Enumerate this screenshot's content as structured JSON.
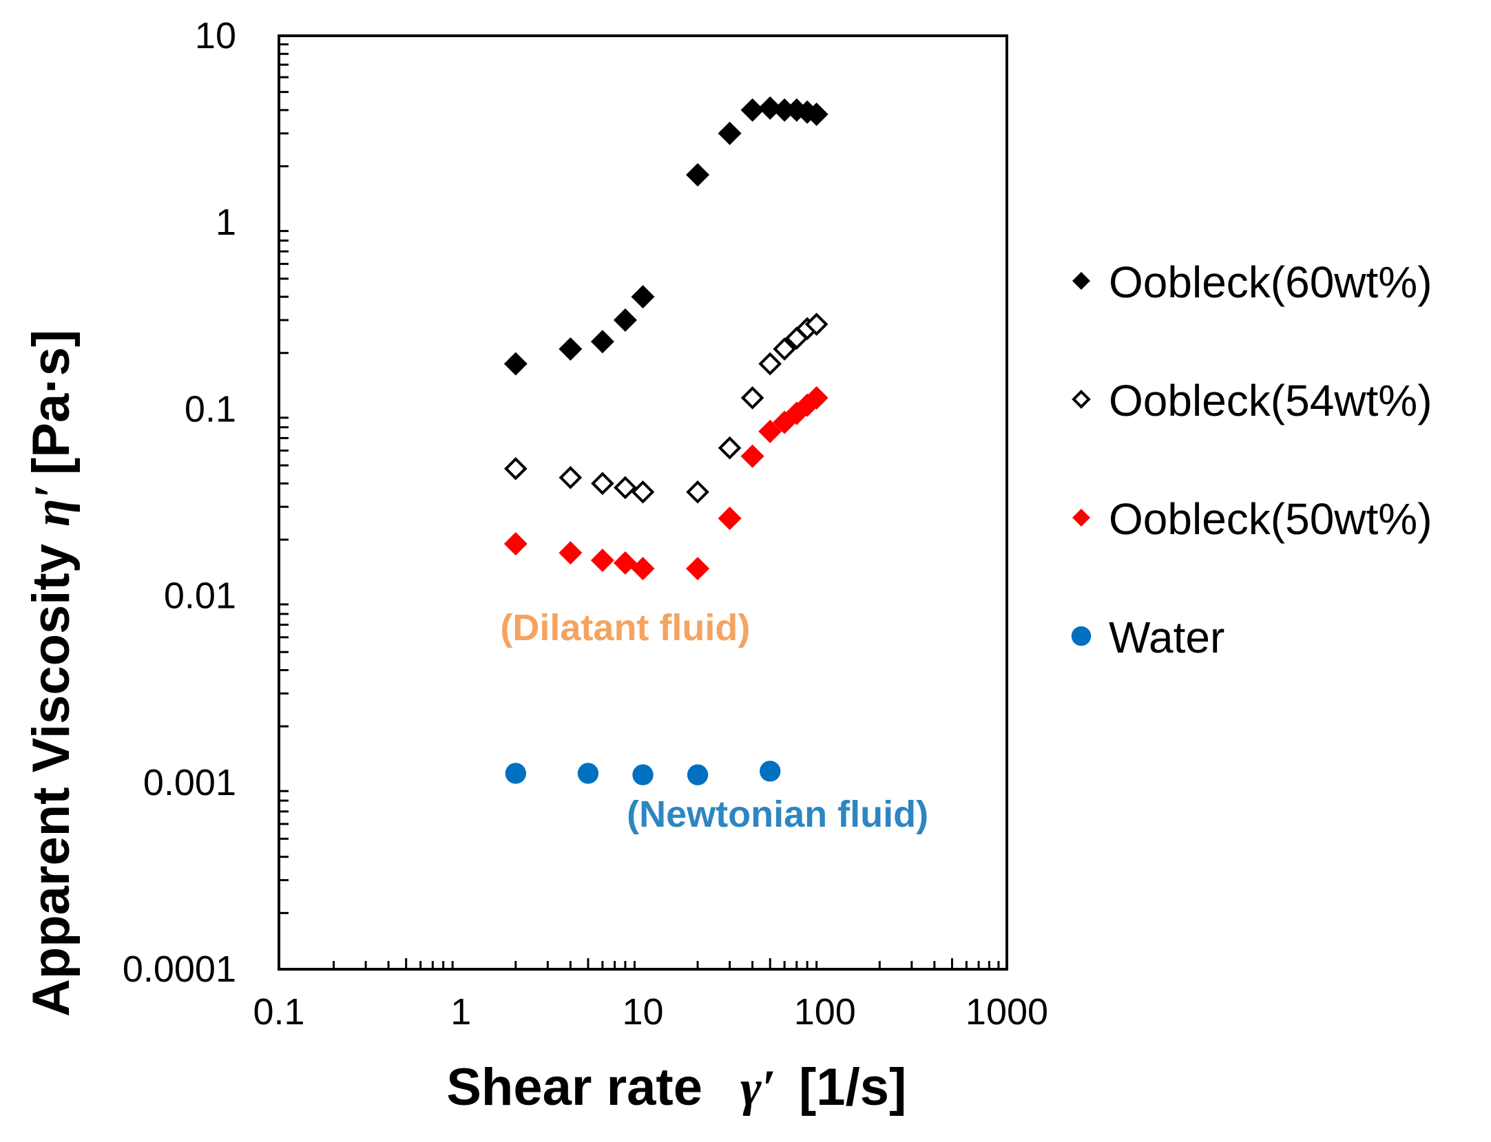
{
  "chart_data": {
    "type": "scatter",
    "title": "",
    "xlabel": "Shear rate",
    "xlabel_symbol": "γ′",
    "xlabel_unit": "[1/s]",
    "ylabel": "Apparent Viscosity",
    "ylabel_symbol": "η′",
    "ylabel_unit": "[Pa·s]",
    "x_scale": "log",
    "y_scale": "log",
    "xlim": [
      0.1,
      1000
    ],
    "ylim": [
      0.0001,
      10
    ],
    "x_ticks": [
      0.1,
      1,
      10,
      100,
      1000
    ],
    "x_tick_labels": [
      "0.1",
      "1",
      "10",
      "100",
      "1000"
    ],
    "y_ticks": [
      0.0001,
      0.001,
      0.01,
      0.1,
      1,
      10
    ],
    "y_tick_labels": [
      "0.0001",
      "0.001",
      "0.01",
      "0.1",
      "1",
      "10"
    ],
    "grid": false,
    "legend_position": "right",
    "series": [
      {
        "name": "Oobleck(60wt%)",
        "marker": "filled-diamond",
        "color": "#000000",
        "x": [
          2,
          4,
          6,
          8,
          10,
          20,
          30,
          40,
          50,
          60,
          70,
          80,
          90
        ],
        "y": [
          0.175,
          0.21,
          0.23,
          0.3,
          0.4,
          1.8,
          3.0,
          4.0,
          4.1,
          4.0,
          4.0,
          3.9,
          3.8
        ]
      },
      {
        "name": "Oobleck(54wt%)",
        "marker": "open-diamond",
        "color": "#000000",
        "x": [
          2,
          4,
          6,
          8,
          10,
          20,
          30,
          40,
          50,
          60,
          70,
          80,
          90
        ],
        "y": [
          0.048,
          0.043,
          0.04,
          0.038,
          0.036,
          0.036,
          0.062,
          0.115,
          0.175,
          0.21,
          0.24,
          0.27,
          0.285
        ]
      },
      {
        "name": "Oobleck(50wt%)",
        "marker": "filled-diamond",
        "color": "#ff0000",
        "x": [
          2,
          4,
          6,
          8,
          10,
          20,
          30,
          40,
          50,
          60,
          70,
          80,
          90
        ],
        "y": [
          0.019,
          0.017,
          0.0155,
          0.015,
          0.014,
          0.014,
          0.026,
          0.056,
          0.076,
          0.085,
          0.095,
          0.105,
          0.115
        ]
      },
      {
        "name": "Water",
        "marker": "circle",
        "color": "#0070c0",
        "x": [
          2,
          5,
          10,
          20,
          50
        ],
        "y": [
          0.00112,
          0.00112,
          0.0011,
          0.0011,
          0.00115
        ]
      }
    ],
    "annotations": [
      {
        "text": "(Dilatant fluid)",
        "color": "#f4a460",
        "x": 8,
        "y": 0.0058
      },
      {
        "text": "(Newtonian fluid)",
        "color": "#2e86c1",
        "x": 55,
        "y": 0.00058
      }
    ]
  }
}
